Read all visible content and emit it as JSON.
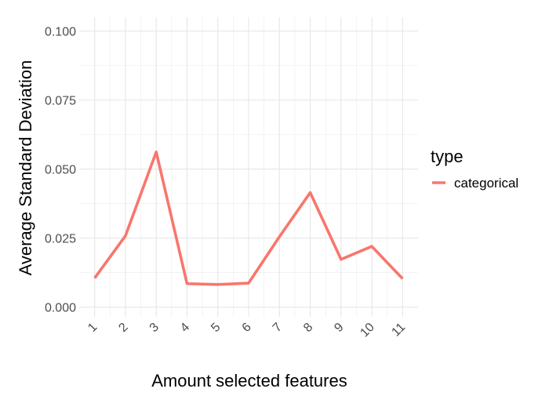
{
  "chart_data": {
    "type": "line",
    "title": "",
    "xlabel": "Amount selected features",
    "ylabel": "Average Standard Deviation",
    "x": [
      1,
      2,
      3,
      4,
      5,
      6,
      7,
      8,
      9,
      10,
      11
    ],
    "x_tick_labels": [
      "1",
      "2",
      "3",
      "4",
      "5",
      "6",
      "7",
      "8",
      "9",
      "10",
      "11"
    ],
    "y_ticks": [
      0.0,
      0.025,
      0.05,
      0.075,
      0.1
    ],
    "y_tick_labels": [
      "0.000",
      "0.025",
      "0.050",
      "0.075",
      "0.100"
    ],
    "xlim": [
      0.5,
      11.5
    ],
    "ylim": [
      -0.0035,
      0.105
    ],
    "grid": true,
    "legend": {
      "title": "type",
      "position": "right"
    },
    "series": [
      {
        "name": "categorical",
        "color": "#F8766D",
        "values": [
          0.0105,
          0.0258,
          0.0562,
          0.0085,
          0.0082,
          0.0087,
          0.0255,
          0.0415,
          0.0173,
          0.022,
          0.0103
        ]
      }
    ]
  }
}
